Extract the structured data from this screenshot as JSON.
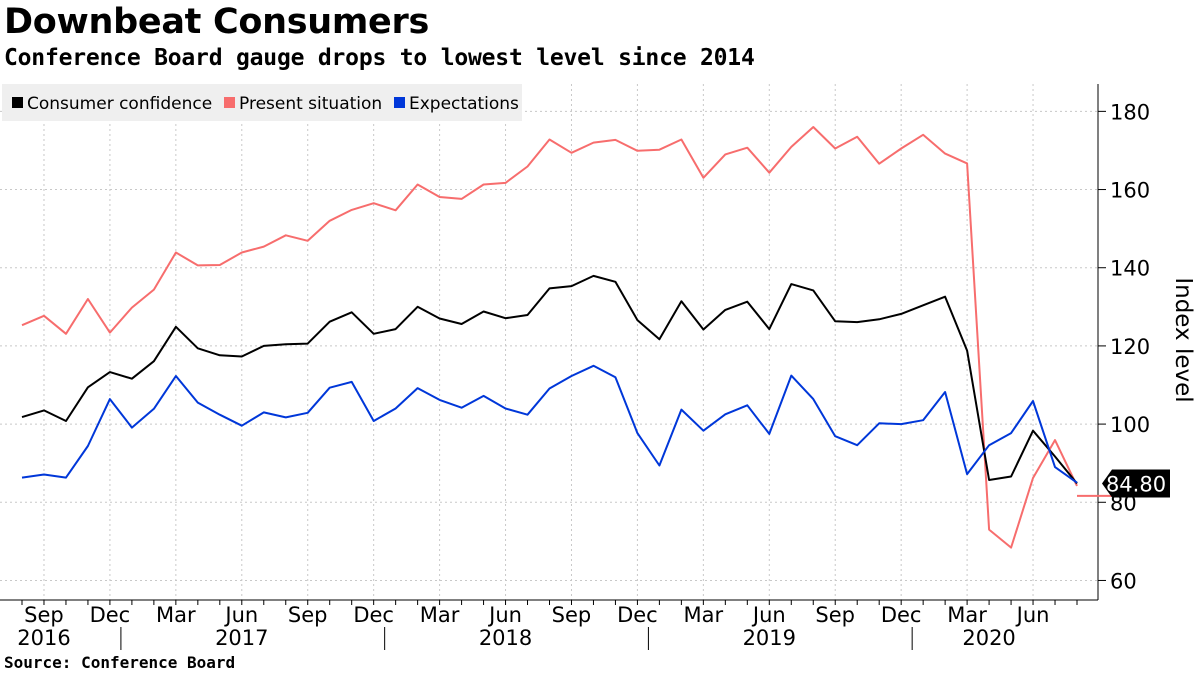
{
  "title": "Downbeat Consumers",
  "subtitle": "Conference Board gauge drops to lowest level since 2014",
  "source": "Source: Conference Board",
  "chart_data": {
    "type": "line",
    "title": "Downbeat Consumers",
    "subtitle": "Conference Board gauge drops to lowest level since 2014",
    "ylabel": "Index level",
    "xlabel": "",
    "ylim": [
      55,
      187
    ],
    "yticks": [
      60,
      80,
      100,
      120,
      140,
      160,
      180
    ],
    "grid": true,
    "legend_position": "top-left",
    "x": [
      "2016-08",
      "2016-09",
      "2016-10",
      "2016-11",
      "2016-12",
      "2017-01",
      "2017-02",
      "2017-03",
      "2017-04",
      "2017-05",
      "2017-06",
      "2017-07",
      "2017-08",
      "2017-09",
      "2017-10",
      "2017-11",
      "2017-12",
      "2018-01",
      "2018-02",
      "2018-03",
      "2018-04",
      "2018-05",
      "2018-06",
      "2018-07",
      "2018-08",
      "2018-09",
      "2018-10",
      "2018-11",
      "2018-12",
      "2019-01",
      "2019-02",
      "2019-03",
      "2019-04",
      "2019-05",
      "2019-06",
      "2019-07",
      "2019-08",
      "2019-09",
      "2019-10",
      "2019-11",
      "2019-12",
      "2020-01",
      "2020-02",
      "2020-03",
      "2020-04",
      "2020-05",
      "2020-06",
      "2020-07",
      "2020-08"
    ],
    "x_month_labels": [
      {
        "date": "2016-09",
        "label": "Sep"
      },
      {
        "date": "2016-12",
        "label": "Dec"
      },
      {
        "date": "2017-03",
        "label": "Mar"
      },
      {
        "date": "2017-06",
        "label": "Jun"
      },
      {
        "date": "2017-09",
        "label": "Sep"
      },
      {
        "date": "2017-12",
        "label": "Dec"
      },
      {
        "date": "2018-03",
        "label": "Mar"
      },
      {
        "date": "2018-06",
        "label": "Jun"
      },
      {
        "date": "2018-09",
        "label": "Sep"
      },
      {
        "date": "2018-12",
        "label": "Dec"
      },
      {
        "date": "2019-03",
        "label": "Mar"
      },
      {
        "date": "2019-06",
        "label": "Jun"
      },
      {
        "date": "2019-09",
        "label": "Sep"
      },
      {
        "date": "2019-12",
        "label": "Dec"
      },
      {
        "date": "2020-03",
        "label": "Mar"
      },
      {
        "date": "2020-06",
        "label": "Jun"
      }
    ],
    "x_year_labels": [
      {
        "date": "2016-09",
        "label": "2016"
      },
      {
        "date": "2017-06",
        "label": "2017"
      },
      {
        "date": "2018-06",
        "label": "2018"
      },
      {
        "date": "2019-06",
        "label": "2019"
      },
      {
        "date": "2020-04",
        "label": "2020"
      }
    ],
    "year_boundaries": [
      "2017-01",
      "2018-01",
      "2019-01",
      "2020-01"
    ],
    "series": [
      {
        "name": "Consumer confidence",
        "color": "#000000",
        "values": [
          101.8,
          103.5,
          100.8,
          109.4,
          113.3,
          111.6,
          116.1,
          124.9,
          119.4,
          117.6,
          117.3,
          120.0,
          120.4,
          120.6,
          126.2,
          128.6,
          123.1,
          124.3,
          130.0,
          127.0,
          125.6,
          128.8,
          127.1,
          127.9,
          134.7,
          135.3,
          137.9,
          136.4,
          126.6,
          121.7,
          131.4,
          124.2,
          129.2,
          131.3,
          124.3,
          135.8,
          134.2,
          126.3,
          126.1,
          126.8,
          128.2,
          130.4,
          132.6,
          118.8,
          85.7,
          86.6,
          98.3,
          91.7,
          84.8
        ]
      },
      {
        "name": "Present situation",
        "color": "#f76d6d",
        "values": [
          125.3,
          127.7,
          123.1,
          132.0,
          123.4,
          129.8,
          134.4,
          143.9,
          140.6,
          140.7,
          143.9,
          145.4,
          148.3,
          146.9,
          152.0,
          154.8,
          156.5,
          154.7,
          161.3,
          158.1,
          157.6,
          161.3,
          161.7,
          165.9,
          172.8,
          169.4,
          172.0,
          172.7,
          169.9,
          170.2,
          172.8,
          163.0,
          169.0,
          170.7,
          164.3,
          170.9,
          176.0,
          170.5,
          173.5,
          166.6,
          170.5,
          174.0,
          169.2,
          166.7,
          73.0,
          68.4,
          86.2,
          95.9,
          84.2
        ]
      },
      {
        "name": "Expectations",
        "color": "#0037d9",
        "values": [
          86.3,
          87.1,
          86.3,
          94.4,
          106.4,
          99.1,
          103.9,
          112.3,
          105.5,
          102.4,
          99.6,
          103.0,
          101.7,
          102.9,
          109.3,
          110.8,
          100.8,
          104.0,
          109.2,
          106.2,
          104.2,
          107.2,
          104.0,
          102.4,
          109.1,
          112.3,
          114.9,
          112.0,
          97.7,
          89.4,
          103.7,
          98.3,
          102.5,
          104.8,
          97.5,
          112.4,
          106.4,
          96.9,
          94.6,
          100.2,
          100.0,
          101.0,
          108.2,
          87.2,
          94.6,
          97.7,
          105.9,
          89.0,
          85.0
        ]
      }
    ],
    "last_value_label": "84.80"
  }
}
